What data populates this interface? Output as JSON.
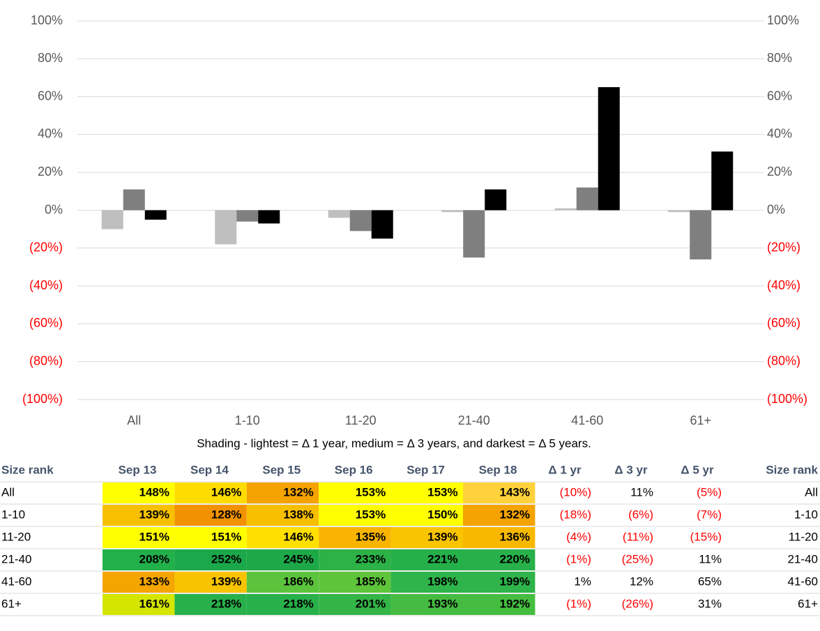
{
  "chart_data": {
    "type": "bar",
    "categories": [
      "All",
      "1-10",
      "11-20",
      "21-40",
      "41-60",
      "61+"
    ],
    "series": [
      {
        "name": "Δ 1 yr",
        "color": "#bfbfbf",
        "values": [
          -10,
          -18,
          -4,
          -1,
          1,
          -1
        ],
        "value_labels": [
          "(10%)",
          "(18%)",
          "(4%)",
          "(1%)",
          "1%",
          "(1%)"
        ]
      },
      {
        "name": "Δ 3 yr",
        "color": "#7f7f7f",
        "values": [
          11,
          -6,
          -11,
          -25,
          12,
          -26
        ],
        "value_labels": [
          "11%",
          "(6%)",
          "(11%)",
          "(25%)",
          "12%",
          "(26%)"
        ]
      },
      {
        "name": "Δ 5 yr",
        "color": "#000000",
        "values": [
          -5,
          -7,
          -15,
          11,
          65,
          31
        ],
        "value_labels": [
          "(5%)",
          "(7%)",
          "(15%)",
          "11%",
          "65%",
          "31%"
        ]
      }
    ],
    "ylim": [
      -100,
      100
    ],
    "yticks": [
      {
        "value": -100,
        "label": "(100%)"
      },
      {
        "value": -80,
        "label": "(80%)"
      },
      {
        "value": -60,
        "label": "(60%)"
      },
      {
        "value": -40,
        "label": "(40%)"
      },
      {
        "value": -20,
        "label": "(20%)"
      },
      {
        "value": 0,
        "label": "0%"
      },
      {
        "value": 20,
        "label": "20%"
      },
      {
        "value": 40,
        "label": "40%"
      },
      {
        "value": 60,
        "label": "60%"
      },
      {
        "value": 80,
        "label": "80%"
      },
      {
        "value": 100,
        "label": "100%"
      }
    ],
    "y2lim": [
      -100,
      100
    ],
    "y2ticks": [
      {
        "value": -100,
        "label": "(100%)"
      },
      {
        "value": -80,
        "label": "(80%)"
      },
      {
        "value": -60,
        "label": "(60%)"
      },
      {
        "value": -40,
        "label": "(40%)"
      },
      {
        "value": -20,
        "label": "(20%)"
      },
      {
        "value": 0,
        "label": "0%"
      },
      {
        "value": 20,
        "label": "20%"
      },
      {
        "value": 40,
        "label": "40%"
      },
      {
        "value": 60,
        "label": "60%"
      },
      {
        "value": 80,
        "label": "80%"
      },
      {
        "value": 100,
        "label": "100%"
      }
    ],
    "grid": true,
    "annotation": "Shading - lightest = Δ 1 year, medium = Δ 3 years, and darkest = Δ 5 years."
  },
  "table": {
    "header": [
      "Size rank",
      "Sep 13",
      "Sep 14",
      "Sep 15",
      "Sep 16",
      "Sep 17",
      "Sep 18",
      "Size rank"
    ],
    "rows": [
      [
        "148%",
        "146%",
        "132%",
        "153%",
        "153%",
        "143%"
      ],
      [
        "139%",
        "128%",
        "138%",
        "153%",
        "150%",
        "132%"
      ],
      [
        "151%",
        "151%",
        "146%",
        "135%",
        "139%",
        "136%"
      ],
      [
        "208%",
        "252%",
        "245%",
        "233%",
        "221%",
        "220%"
      ],
      [
        "133%",
        "139%",
        "186%",
        "185%",
        "198%",
        "199%"
      ],
      [
        "161%",
        "218%",
        "218%",
        "201%",
        "193%",
        "192%"
      ]
    ],
    "colors": [
      [
        "#ffff00",
        "#ffdc00",
        "#f4a300",
        "#ffff00",
        "#ffff00",
        "#ffd23c"
      ],
      [
        "#f8c000",
        "#f39200",
        "#f8be00",
        "#ffff00",
        "#ffff00",
        "#f4a300"
      ],
      [
        "#ffff00",
        "#ffff00",
        "#ffe000",
        "#f8b400",
        "#f9c400",
        "#f8b800"
      ],
      [
        "#22b04b",
        "#1aa84a",
        "#1da948",
        "#2cb246",
        "#25b04a",
        "#28b14a"
      ],
      [
        "#f4a500",
        "#f8c300",
        "#5cc43c",
        "#5ec43a",
        "#2eb44a",
        "#2eb44a"
      ],
      [
        "#d4e600",
        "#28b14a",
        "#28b14a",
        "#33b547",
        "#45bc41",
        "#45bd40"
      ]
    ]
  }
}
